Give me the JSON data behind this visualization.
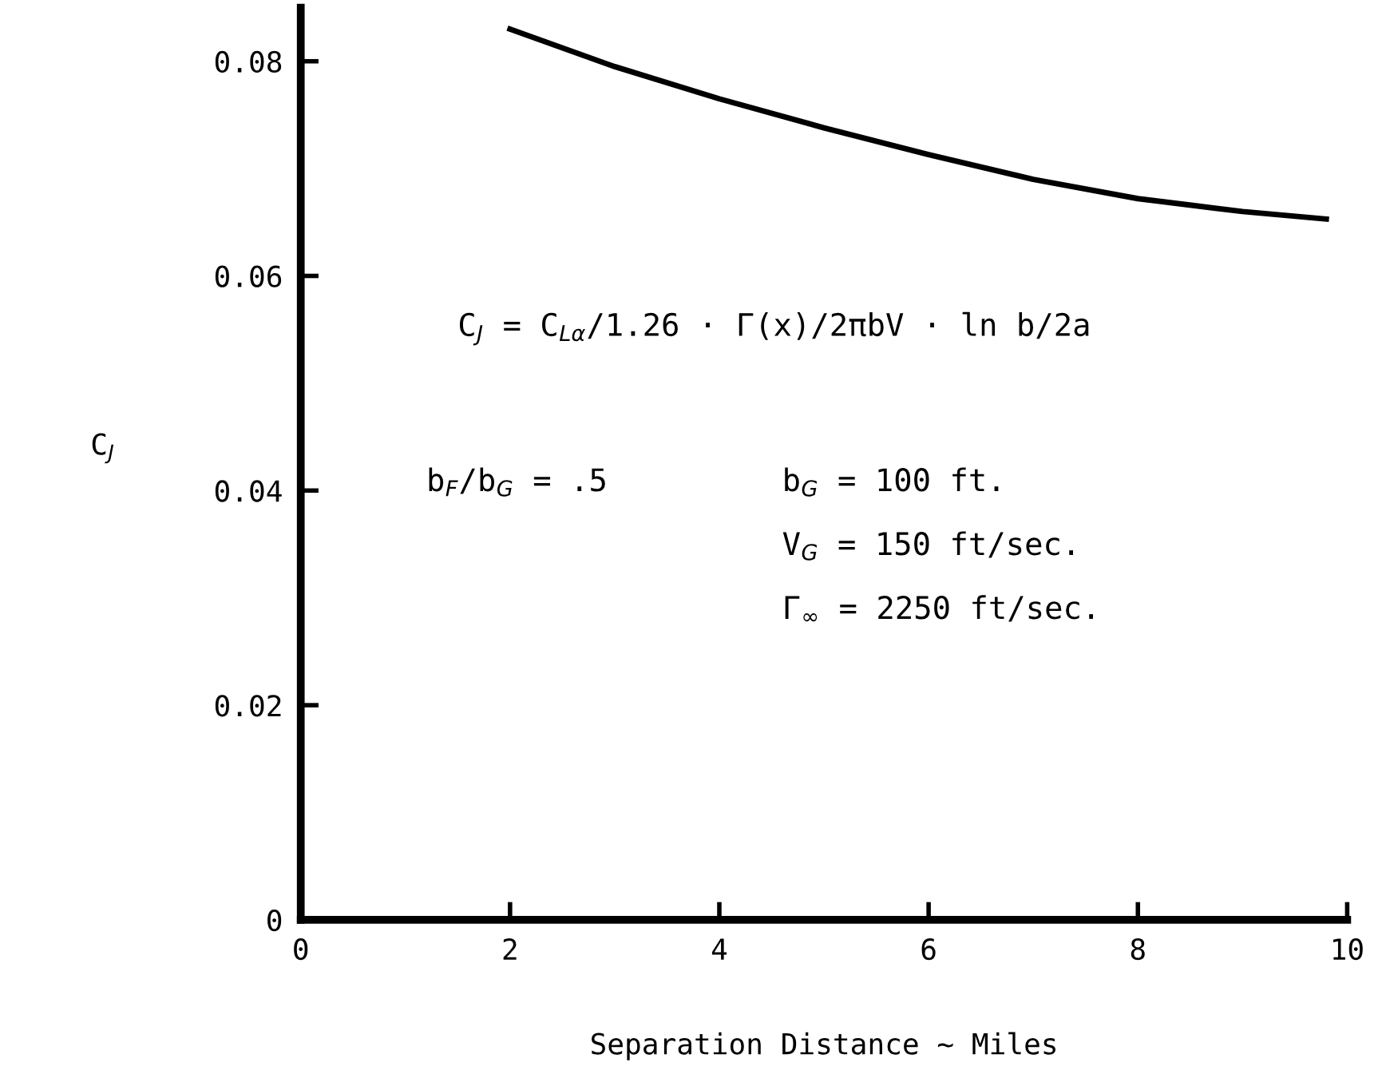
{
  "chart_data": {
    "type": "line",
    "xlabel": "Separation Distance ~ Miles",
    "ylabel": "C$_{J}$",
    "x": [
      2.0,
      3.0,
      4.0,
      5.0,
      6.0,
      7.0,
      8.0,
      9.0,
      9.8
    ],
    "series": [
      {
        "color": "#000000",
        "values": [
          0.083,
          0.0795,
          0.0765,
          0.0738,
          0.0713,
          0.069,
          0.0672,
          0.066,
          0.0653
        ]
      }
    ],
    "xlim": [
      0,
      10
    ],
    "ylim": [
      0,
      0.085
    ],
    "xticks": [
      0,
      2,
      4,
      6,
      8,
      10
    ],
    "yticks": [
      0,
      0.02,
      0.04,
      0.06,
      0.08
    ],
    "grid": false,
    "legend": false,
    "marker": "none",
    "line_style": "solid",
    "annotations": [
      "C$_{J}$ = C$_{Lα}$/1.26 · Γ(x)/2πbV · ln b/2a",
      "b$_{F}$/b$_{G}$ = .5",
      "b$_{G}$ = 100 ft.",
      "V$_{G}$ = 150 ft/sec.",
      "Γ$_{∞}$ = 2250 ft/sec."
    ]
  }
}
